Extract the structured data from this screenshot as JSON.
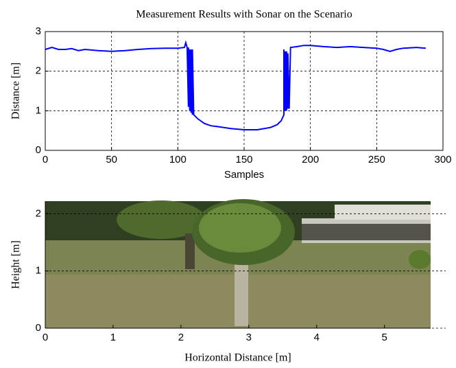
{
  "chart_data": [
    {
      "type": "line",
      "title": "Measurement Results with Sonar on the Scenario",
      "xlabel": "Samples",
      "ylabel": "Distance [m]",
      "x": [
        0,
        5,
        10,
        15,
        20,
        25,
        30,
        40,
        50,
        60,
        70,
        80,
        90,
        100,
        105,
        106,
        107,
        108,
        108,
        109,
        109,
        110,
        110,
        111,
        111,
        112,
        115,
        120,
        125,
        130,
        140,
        150,
        160,
        170,
        175,
        178,
        180,
        180,
        181,
        181,
        182,
        182,
        183,
        183,
        184,
        185,
        190,
        195,
        200,
        210,
        220,
        230,
        240,
        250,
        255,
        260,
        265,
        270,
        280,
        287
      ],
      "y": [
        2.55,
        2.6,
        2.55,
        2.55,
        2.57,
        2.52,
        2.55,
        2.52,
        2.5,
        2.52,
        2.55,
        2.57,
        2.58,
        2.58,
        2.6,
        2.72,
        2.6,
        1.1,
        2.6,
        1.0,
        2.55,
        0.95,
        2.55,
        0.9,
        2.55,
        0.9,
        0.8,
        0.68,
        0.62,
        0.6,
        0.55,
        0.52,
        0.52,
        0.58,
        0.65,
        0.75,
        0.9,
        2.55,
        1.0,
        2.5,
        1.0,
        2.5,
        1.05,
        2.45,
        1.05,
        2.6,
        2.62,
        2.65,
        2.65,
        2.62,
        2.6,
        2.62,
        2.6,
        2.58,
        2.55,
        2.5,
        2.55,
        2.58,
        2.6,
        2.58
      ],
      "color": "#0000ff",
      "xlim": [
        0,
        300
      ],
      "ylim": [
        0,
        3
      ],
      "xticks": [
        0,
        50,
        100,
        150,
        200,
        250,
        300
      ],
      "yticks": [
        0,
        1,
        2,
        3
      ],
      "grid": true
    },
    {
      "type": "image",
      "xlabel": "Horizontal Distance [m]",
      "ylabel": "Height [m]",
      "xlim": [
        0,
        5.68
      ],
      "ylim": [
        0,
        2.22
      ],
      "xticks": [
        0,
        1,
        2,
        3,
        4,
        5
      ],
      "yticks": [
        0,
        1,
        2
      ],
      "grid": true
    }
  ]
}
